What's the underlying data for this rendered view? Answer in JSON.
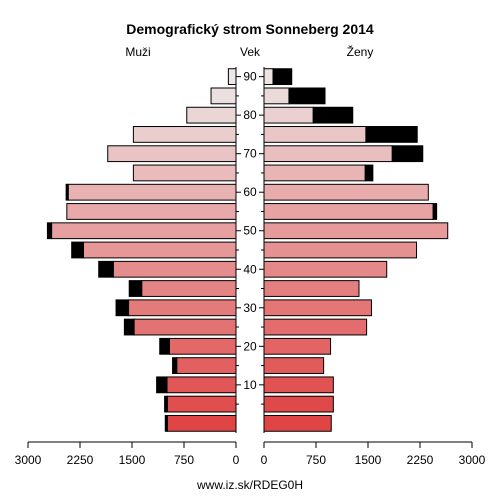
{
  "chart_data": {
    "type": "bar",
    "orientation": "population-pyramid",
    "title": "Demografický strom Sonneberg 2014",
    "left_label": "Muži",
    "center_label": "Vek",
    "right_label": "Ženy",
    "footer": "www.iz.sk/RDEG0H",
    "x_ticks": [
      "3000",
      "2250",
      "1500",
      "750",
      "0"
    ],
    "x_ticks_right": [
      "0",
      "750",
      "1500",
      "2250",
      "3000"
    ],
    "xlim": [
      0,
      3000
    ],
    "age_ticks": [
      {
        "age": 90,
        "label": "90"
      },
      {
        "age": 80,
        "label": "80"
      },
      {
        "age": 70,
        "label": "70"
      },
      {
        "age": 60,
        "label": "60"
      },
      {
        "age": 50,
        "label": "50"
      },
      {
        "age": 40,
        "label": "40"
      },
      {
        "age": 30,
        "label": "30"
      },
      {
        "age": 20,
        "label": "20"
      },
      {
        "age": 10,
        "label": "10"
      }
    ],
    "age_groups": [
      "0-4",
      "5-9",
      "10-14",
      "15-19",
      "20-24",
      "25-29",
      "30-34",
      "35-39",
      "40-44",
      "45-49",
      "50-54",
      "55-59",
      "60-64",
      "65-69",
      "70-74",
      "75-79",
      "80-84",
      "85-89",
      "90+"
    ],
    "series": [
      {
        "name": "Muži",
        "base": [
          990,
          990,
          995,
          855,
          960,
          1470,
          1550,
          1360,
          1770,
          2200,
          2660,
          2440,
          2420,
          1480,
          1850,
          1480,
          710,
          360,
          110
        ],
        "excess": [
          30,
          40,
          150,
          60,
          140,
          140,
          180,
          180,
          210,
          170,
          60,
          0,
          30,
          0,
          0,
          0,
          0,
          0,
          0
        ]
      },
      {
        "name": "Ženy",
        "base": [
          970,
          1000,
          1000,
          860,
          960,
          1480,
          1550,
          1370,
          1770,
          2200,
          2650,
          2440,
          2370,
          1460,
          1850,
          1470,
          710,
          360,
          130
        ],
        "excess": [
          0,
          0,
          0,
          0,
          0,
          0,
          0,
          0,
          0,
          0,
          0,
          50,
          0,
          110,
          440,
          740,
          570,
          520,
          270
        ]
      }
    ],
    "colors": {
      "excess": "#000000",
      "gradient_young": "#e04545",
      "gradient_old": "#ece8e8"
    }
  }
}
